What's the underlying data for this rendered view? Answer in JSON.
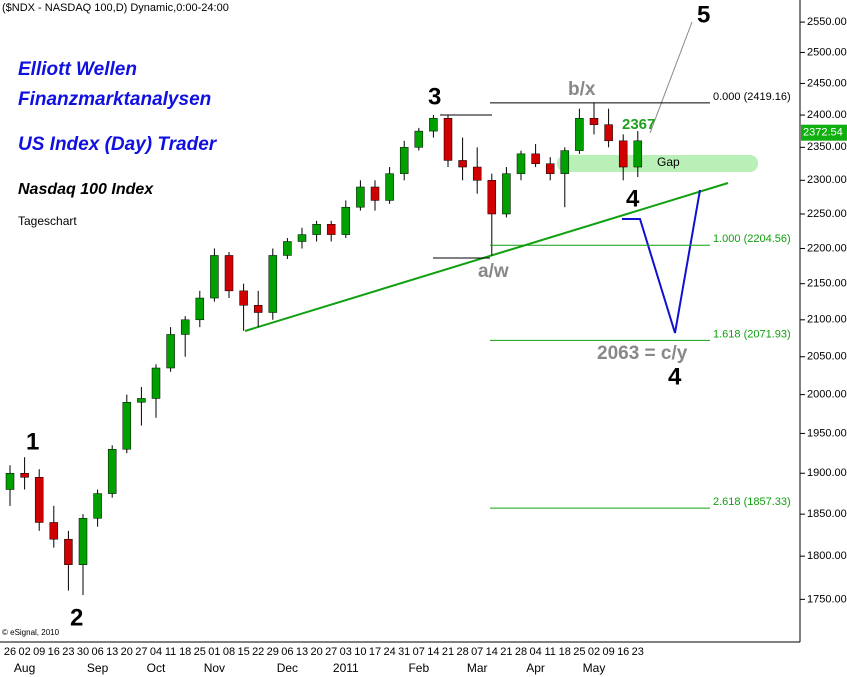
{
  "chart_data": {
    "type": "candlestick",
    "title": "($NDX - NASDAQ 100,D) Dynamic,0:00-24:00",
    "categories": [
      "26",
      "02",
      "09",
      "16",
      "23",
      "30",
      "06",
      "13",
      "20",
      "27",
      "04",
      "11",
      "18",
      "25",
      "01",
      "08",
      "15",
      "22",
      "29",
      "06",
      "13",
      "20",
      "27",
      "03",
      "10",
      "17",
      "24",
      "31",
      "07",
      "14",
      "21",
      "28",
      "07",
      "14",
      "21",
      "28",
      "04",
      "11",
      "18",
      "25",
      "02",
      "09",
      "16",
      "23"
    ],
    "month_labels": [
      null,
      "Aug",
      null,
      null,
      null,
      null,
      "Sep",
      null,
      null,
      null,
      "Oct",
      null,
      null,
      null,
      "Nov",
      null,
      null,
      null,
      null,
      "Dec",
      null,
      null,
      null,
      "2011",
      null,
      null,
      null,
      null,
      "Feb",
      null,
      null,
      null,
      "Mar",
      null,
      null,
      null,
      "Apr",
      null,
      null,
      null,
      "May",
      null,
      null,
      null
    ],
    "open": [
      1880,
      1900,
      1895,
      1840,
      1820,
      1790,
      1845,
      1875,
      1930,
      1990,
      1995,
      2035,
      2080,
      2100,
      2130,
      2190,
      2140,
      2120,
      2110,
      2190,
      2210,
      2220,
      2235,
      2220,
      2260,
      2290,
      2270,
      2310,
      2350,
      2375,
      2395,
      2330,
      2320,
      2300,
      2250,
      2310,
      2340,
      2325,
      2310,
      2345,
      2395,
      2385,
      2360,
      2320
    ],
    "high": [
      1910,
      1920,
      1905,
      1860,
      1830,
      1850,
      1880,
      1935,
      2000,
      2010,
      2040,
      2090,
      2105,
      2140,
      2200,
      2195,
      2150,
      2140,
      2200,
      2215,
      2230,
      2240,
      2240,
      2270,
      2300,
      2300,
      2320,
      2360,
      2380,
      2400,
      2400,
      2365,
      2350,
      2310,
      2320,
      2345,
      2355,
      2335,
      2350,
      2410,
      2420,
      2410,
      2370,
      2375
    ],
    "low": [
      1860,
      1880,
      1830,
      1810,
      1760,
      1755,
      1835,
      1870,
      1925,
      1960,
      1970,
      2030,
      2050,
      2090,
      2125,
      2130,
      2085,
      2090,
      2100,
      2185,
      2200,
      2210,
      2210,
      2215,
      2255,
      2255,
      2265,
      2300,
      2345,
      2365,
      2320,
      2300,
      2280,
      2190,
      2245,
      2300,
      2320,
      2300,
      2260,
      2340,
      2370,
      2350,
      2300,
      2305
    ],
    "close": [
      1900,
      1895,
      1840,
      1820,
      1790,
      1845,
      1875,
      1930,
      1990,
      1995,
      2035,
      2080,
      2100,
      2130,
      2190,
      2140,
      2120,
      2110,
      2190,
      2210,
      2220,
      2235,
      2220,
      2260,
      2290,
      2270,
      2310,
      2350,
      2375,
      2395,
      2330,
      2320,
      2300,
      2250,
      2310,
      2340,
      2325,
      2310,
      2345,
      2395,
      2385,
      2360,
      2320,
      2360
    ],
    "up_color": "#00a000",
    "down_color": "#d00000",
    "log_scale": true,
    "ylim": [
      1702,
      2587
    ],
    "yticks": [
      {
        "value": 1750,
        "label": "1750.00"
      },
      {
        "value": 1800,
        "label": "1800.00"
      },
      {
        "value": 1850,
        "label": "1850.00"
      },
      {
        "value": 1900,
        "label": "1900.00"
      },
      {
        "value": 1950,
        "label": "1950.00"
      },
      {
        "value": 2000,
        "label": "2000.00"
      },
      {
        "value": 2050,
        "label": "2050.00"
      },
      {
        "value": 2100,
        "label": "2100.00"
      },
      {
        "value": 2150,
        "label": "2150.00"
      },
      {
        "value": 2200,
        "label": "2200.00"
      },
      {
        "value": 2250,
        "label": "2250.00"
      },
      {
        "value": 2300,
        "label": "2300.00"
      },
      {
        "value": 2350,
        "label": "2350.00"
      },
      {
        "value": 2400,
        "label": "2400.00"
      },
      {
        "value": 2450,
        "label": "2450.00"
      },
      {
        "value": 2500,
        "label": "2500.00"
      },
      {
        "value": 2550,
        "label": "2550.00"
      }
    ],
    "last_price": {
      "value": 2372.54,
      "label": "2372.54"
    },
    "fib_levels": [
      {
        "value": 2419.16,
        "label": "0.000 (2419.16)"
      },
      {
        "value": 2204.56,
        "label": "1.000 (2204.56)"
      },
      {
        "value": 2071.93,
        "label": "1.618 (2071.93)"
      },
      {
        "value": 1857.33,
        "label": "2.618 (1857.33)"
      }
    ],
    "annotations": [
      "Elliott Wellen",
      "Finanzmarktanalysen",
      "US Index (Day) Trader",
      "Nasdaq 100 Index",
      "Tageschart",
      "1",
      "2",
      "3",
      "b/x",
      "a/w",
      "4",
      "5",
      "4",
      "2367",
      "Gap",
      "2063 = c/y",
      "© eSignal, 2010"
    ]
  }
}
